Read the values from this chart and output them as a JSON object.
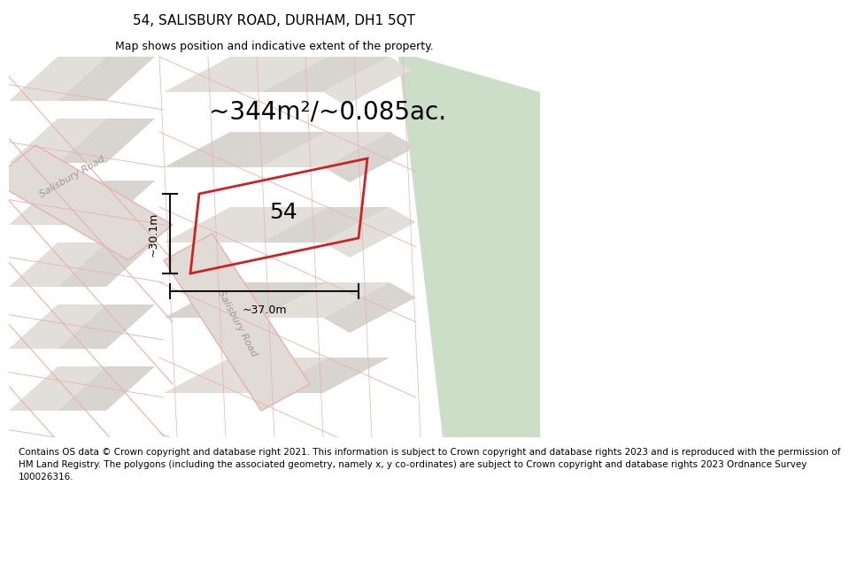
{
  "title": "54, SALISBURY ROAD, DURHAM, DH1 5QT",
  "subtitle": "Map shows position and indicative extent of the property.",
  "area_text": "~344m²/~0.085ac.",
  "label_54": "54",
  "dim_width": "~37.0m",
  "dim_height": "~30.1m",
  "road_label_1": "Salisbury Road",
  "road_label_2": "Salisbury Road",
  "footer": "Contains OS data © Crown copyright and database right 2021. This information is subject to Crown copyright and database rights 2023 and is reproduced with the permission of\nHM Land Registry. The polygons (including the associated geometry, namely x, y co-ordinates) are subject to Crown copyright and database rights 2023 Ordnance Survey\n100026316.",
  "map_bg": "#eeece8",
  "green_color": "#ccdec8",
  "block_color_1": "#e2dfdb",
  "block_color_2": "#d8d5d0",
  "road_pink": "#e8b0b0",
  "road_pink2": "#dda0a0",
  "plot_red": "#cc2222",
  "dim_color": "#111111",
  "title_fontsize": 11,
  "subtitle_fontsize": 9,
  "area_fontsize": 20,
  "label_fontsize": 18,
  "dim_fontsize": 9,
  "road_label_fontsize": 8,
  "footer_fontsize": 7.5
}
